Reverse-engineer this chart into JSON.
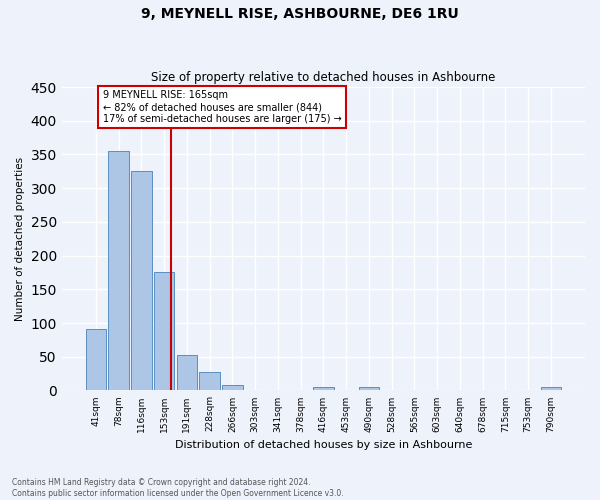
{
  "title": "9, MEYNELL RISE, ASHBOURNE, DE6 1RU",
  "subtitle": "Size of property relative to detached houses in Ashbourne",
  "xlabel": "Distribution of detached houses by size in Ashbourne",
  "ylabel": "Number of detached properties",
  "footnote1": "Contains HM Land Registry data © Crown copyright and database right 2024.",
  "footnote2": "Contains public sector information licensed under the Open Government Licence v3.0.",
  "bar_labels": [
    "41sqm",
    "78sqm",
    "116sqm",
    "153sqm",
    "191sqm",
    "228sqm",
    "266sqm",
    "303sqm",
    "341sqm",
    "378sqm",
    "416sqm",
    "453sqm",
    "490sqm",
    "528sqm",
    "565sqm",
    "603sqm",
    "640sqm",
    "678sqm",
    "715sqm",
    "753sqm",
    "790sqm"
  ],
  "bar_values": [
    91,
    355,
    325,
    175,
    52,
    27,
    8,
    0,
    0,
    0,
    5,
    0,
    5,
    0,
    0,
    0,
    0,
    0,
    0,
    0,
    5
  ],
  "bar_color": "#adc6e5",
  "bar_edge_color": "#5a8fc2",
  "vline_color": "#cc0000",
  "annotation_text": "9 MEYNELL RISE: 165sqm\n← 82% of detached houses are smaller (844)\n17% of semi-detached houses are larger (175) →",
  "annotation_box_color": "#cc0000",
  "ylim": [
    0,
    450
  ],
  "yticks": [
    0,
    50,
    100,
    150,
    200,
    250,
    300,
    350,
    400,
    450
  ],
  "background_color": "#eef2fb",
  "grid_color": "#ffffff"
}
